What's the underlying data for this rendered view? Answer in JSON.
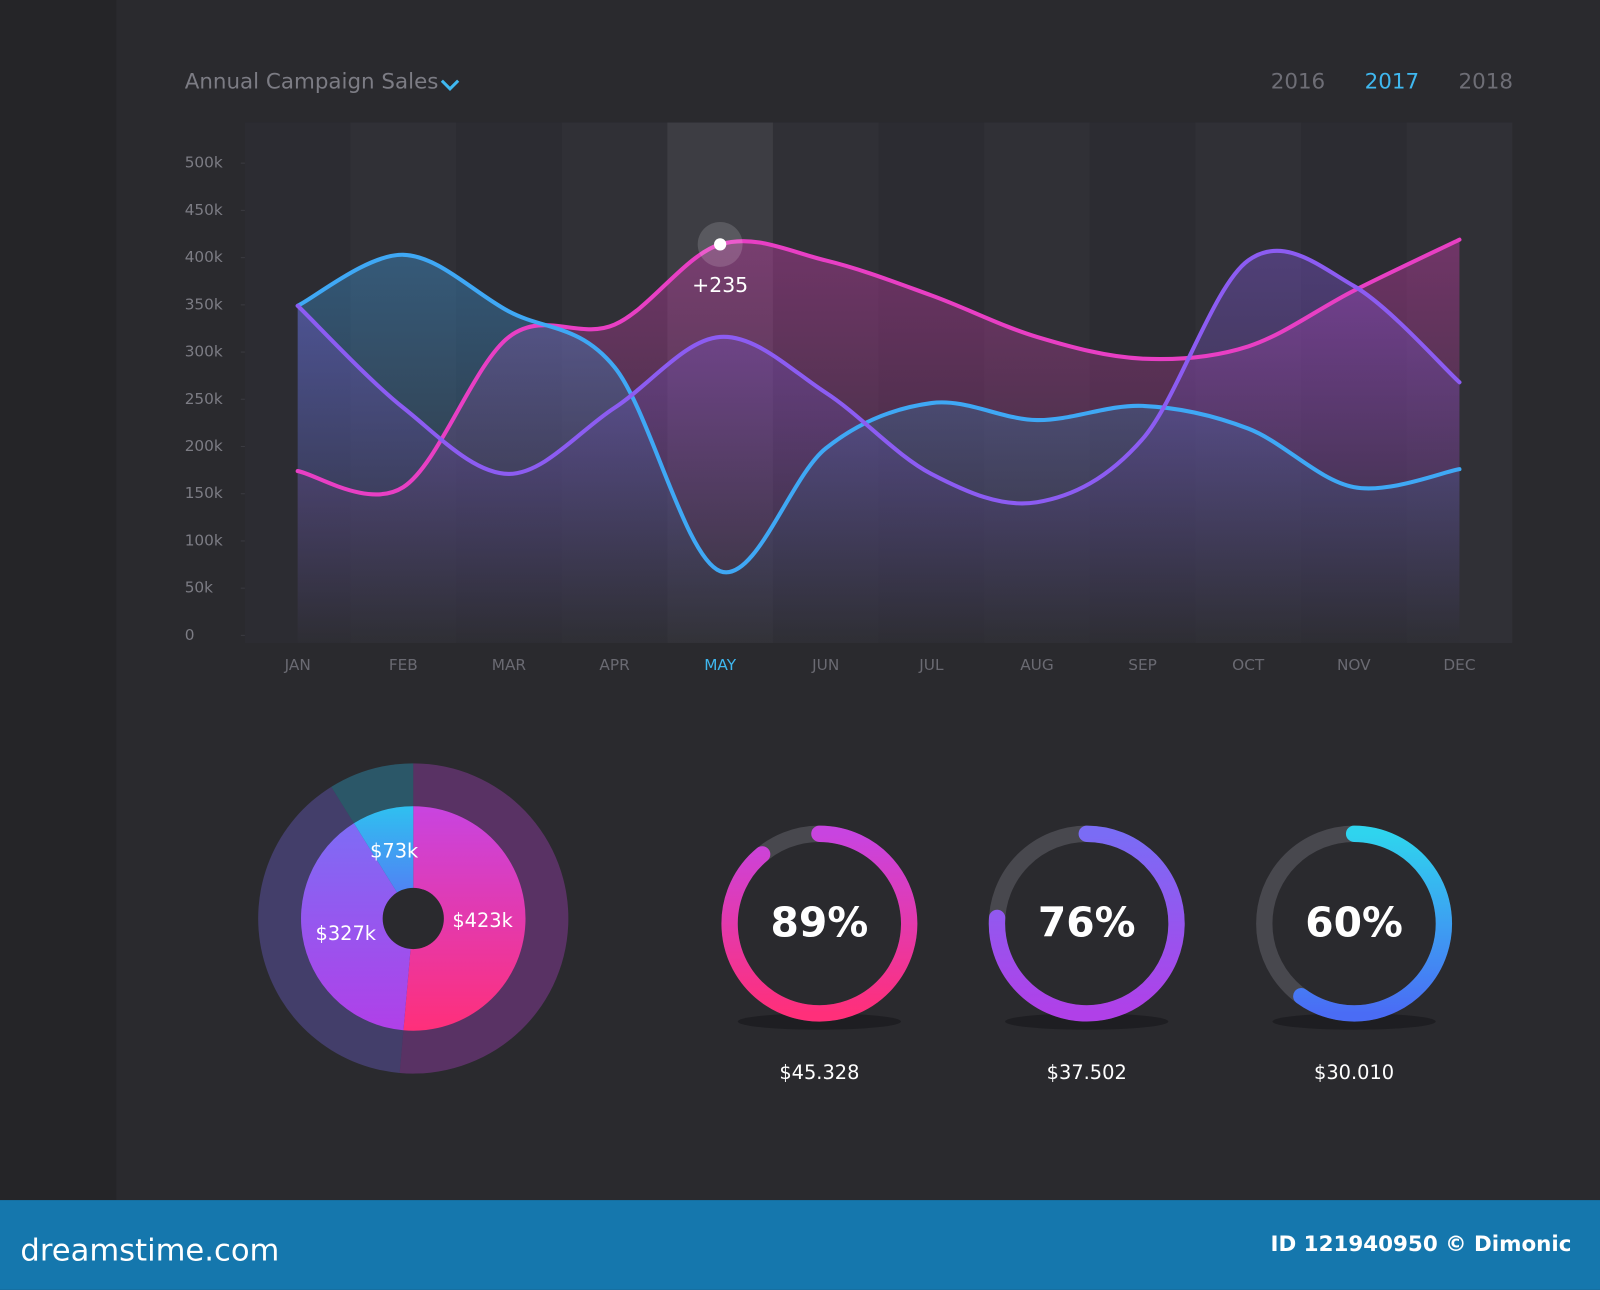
{
  "header": {
    "tabs": [
      "2016",
      "2017",
      "2018"
    ],
    "active_tab": 1
  },
  "chart_data": [
    {
      "type": "line",
      "title": "Annual Campaign Sales",
      "categories": [
        "JAN",
        "FEB",
        "MAR",
        "APR",
        "MAY",
        "JUN",
        "JUL",
        "AUG",
        "SEP",
        "OCT",
        "NOV",
        "DEC"
      ],
      "highlight_index": 4,
      "series": [
        {
          "color": "#e83fc4",
          "values": [
            174000,
            157000,
            316000,
            329000,
            414000,
            397000,
            360000,
            316000,
            293000,
            306000,
            365000,
            419000
          ]
        },
        {
          "color": "#3fa8f5",
          "values": [
            349000,
            403000,
            343000,
            284000,
            68000,
            198000,
            246000,
            228000,
            243000,
            219000,
            157000,
            176000
          ]
        },
        {
          "color": "#8c5cf2",
          "values": [
            349000,
            241000,
            171000,
            241000,
            316000,
            257000,
            171000,
            141000,
            208000,
            397000,
            370000,
            268000
          ]
        }
      ],
      "ylim": [
        -8000,
        543000
      ],
      "yticks": [
        0,
        {
          "value": 50000,
          "label": "50k"
        },
        {
          "value": 100000,
          "label": "100k"
        },
        {
          "value": 150000,
          "label": "150k"
        },
        {
          "value": 200000,
          "label": "200k"
        },
        {
          "value": 250000,
          "label": "250k"
        },
        {
          "value": 300000,
          "label": "300k"
        },
        {
          "value": 350000,
          "label": "350k"
        },
        {
          "value": 400000,
          "label": "400k"
        },
        {
          "value": 450000,
          "label": "450k"
        },
        {
          "value": 500000,
          "label": "500k"
        }
      ],
      "annotation": {
        "text": "+235",
        "series": 0,
        "index": 4
      }
    },
    {
      "type": "pie",
      "values": [
        423,
        327,
        73
      ],
      "value_labels": [
        "$423k",
        "$327k",
        "$73k"
      ],
      "colors": [
        [
          "#c844e0",
          "#ff2f7a"
        ],
        [
          "#7e6cf5",
          "#b040e8"
        ],
        [
          "#2fc0f0",
          "#5a70f5"
        ]
      ]
    },
    {
      "type": "gauge",
      "values": [
        89
      ],
      "value_labels": [
        "89%"
      ],
      "caption": "$45.328",
      "colors": [
        "#c844e0",
        "#ff2f7a"
      ]
    },
    {
      "type": "gauge",
      "values": [
        76
      ],
      "value_labels": [
        "76%"
      ],
      "caption": "$37.502",
      "colors": [
        "#7a6cf5",
        "#b040e8"
      ]
    },
    {
      "type": "gauge",
      "values": [
        60
      ],
      "value_labels": [
        "60%"
      ],
      "caption": "$30.010",
      "colors": [
        "#2fd4ee",
        "#4a6cf5"
      ]
    }
  ],
  "footer": {
    "brand": "dreamstime.com",
    "credit": "ID 121940950 © Dimonic"
  }
}
